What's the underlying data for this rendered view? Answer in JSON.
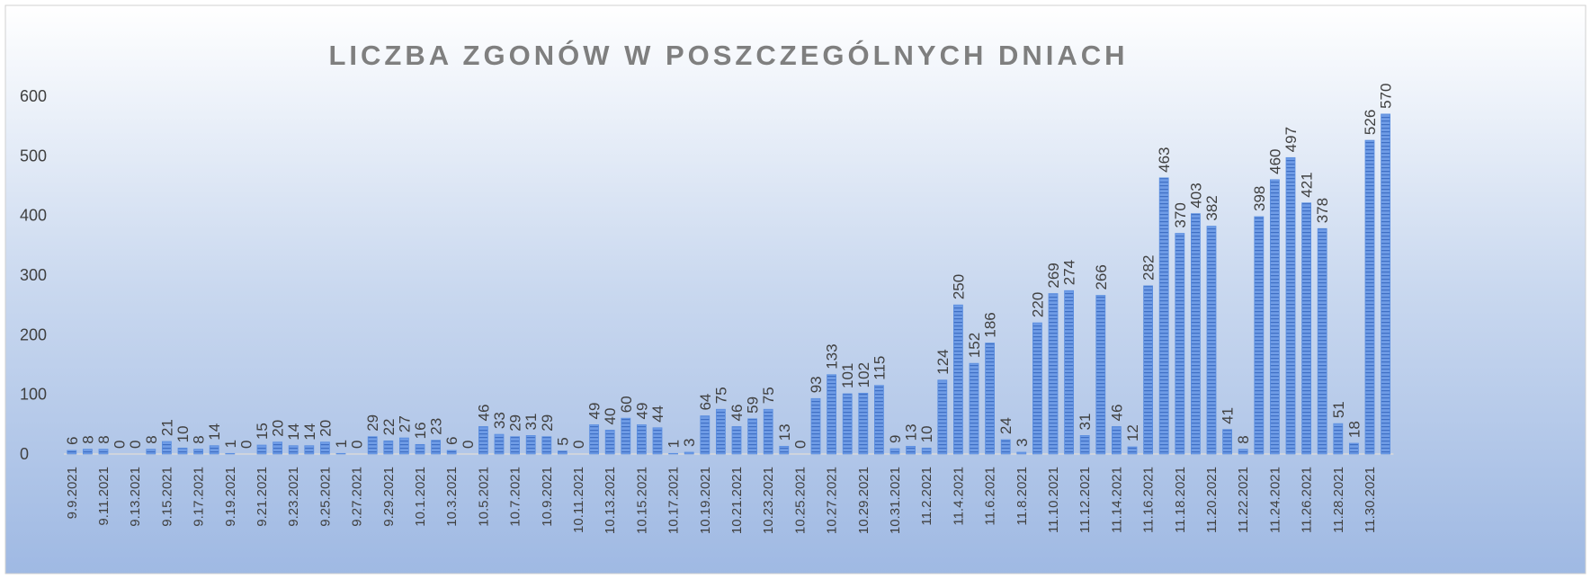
{
  "chart_data": {
    "type": "bar",
    "title": "LICZBA ZGONÓW W POSZCZEGÓLNYCH DNIACH",
    "categories": [
      "9.9.2021",
      null,
      "9.11.2021",
      null,
      "9.13.2021",
      null,
      "9.15.2021",
      null,
      "9.17.2021",
      null,
      "9.19.2021",
      null,
      "9.21.2021",
      null,
      "9.23.2021",
      null,
      "9.25.2021",
      null,
      "9.27.2021",
      null,
      "9.29.2021",
      null,
      "10.1.2021",
      null,
      "10.3.2021",
      null,
      "10.5.2021",
      null,
      "10.7.2021",
      null,
      "10.9.2021",
      null,
      "10.11.2021",
      null,
      "10.13.2021",
      null,
      "10.15.2021",
      null,
      "10.17.2021",
      null,
      "10.19.2021",
      null,
      "10.21.2021",
      null,
      "10.23.2021",
      null,
      "10.25.2021",
      null,
      "10.27.2021",
      null,
      "10.29.2021",
      null,
      "10.31.2021",
      null,
      "11.2.2021",
      null,
      "11.4.2021",
      null,
      "11.6.2021",
      null,
      "11.8.2021",
      null,
      "11.10.2021",
      null,
      "11.12.2021",
      null,
      "11.14.2021",
      null,
      "11.16.2021",
      null,
      "11.18.2021",
      null,
      "11.20.2021",
      null,
      "11.22.2021",
      null,
      "11.24.2021",
      null,
      "11.26.2021",
      null,
      "11.28.2021",
      null,
      "11.30.2021",
      null
    ],
    "values": [
      6,
      8,
      8,
      0,
      0,
      8,
      21,
      10,
      8,
      14,
      1,
      0,
      15,
      20,
      14,
      14,
      20,
      1,
      0,
      29,
      22,
      27,
      16,
      23,
      6,
      0,
      46,
      33,
      29,
      31,
      29,
      5,
      0,
      49,
      40,
      60,
      49,
      44,
      1,
      3,
      64,
      75,
      46,
      59,
      75,
      13,
      0,
      93,
      133,
      101,
      102,
      115,
      9,
      13,
      10,
      124,
      250,
      152,
      186,
      24,
      3,
      220,
      269,
      274,
      31,
      266,
      46,
      12,
      282,
      463,
      370,
      403,
      382,
      41,
      8,
      398,
      460,
      497,
      421,
      378,
      51,
      18,
      526,
      570
    ],
    "color": "#5a8ee0",
    "ylim": [
      0,
      600
    ],
    "yticks": [
      0,
      100,
      200,
      300,
      400,
      500,
      600
    ],
    "grid": false
  }
}
